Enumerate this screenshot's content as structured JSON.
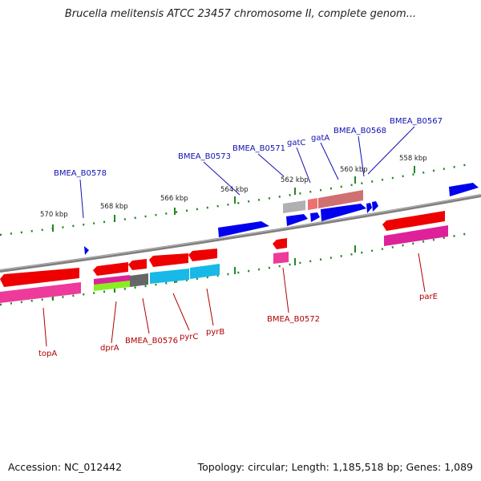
{
  "title": "Brucella melitensis ATCC 23457 chromosome II, complete genom...",
  "footer": {
    "accession": "Accession: NC_012442",
    "summary": "Topology: circular; Length: 1,185,518 bp; Genes: 1,089"
  },
  "scale_labels": [
    "570 kbp",
    "568 kbp",
    "566 kbp",
    "564 kbp",
    "562 kbp",
    "560 kbp",
    "558 kbp"
  ],
  "genes_top_labels": [
    "BMEA_B0578",
    "BMEA_B0573",
    "BMEA_B0571",
    "gatC",
    "gatA",
    "BMEA_B0568",
    "BMEA_B0567"
  ],
  "genes_bottom_labels": [
    "topA",
    "dprA",
    "BMEA_B0576",
    "pyrC",
    "pyrB",
    "BMEA_B0572",
    "parE"
  ],
  "colors": {
    "backbone": "#808080",
    "forward_gene": "#0000ee",
    "reverse_gene": "#ee0000",
    "tick": "#228822",
    "top_label": "#1010b0",
    "bottom_label": "#b00000"
  }
}
